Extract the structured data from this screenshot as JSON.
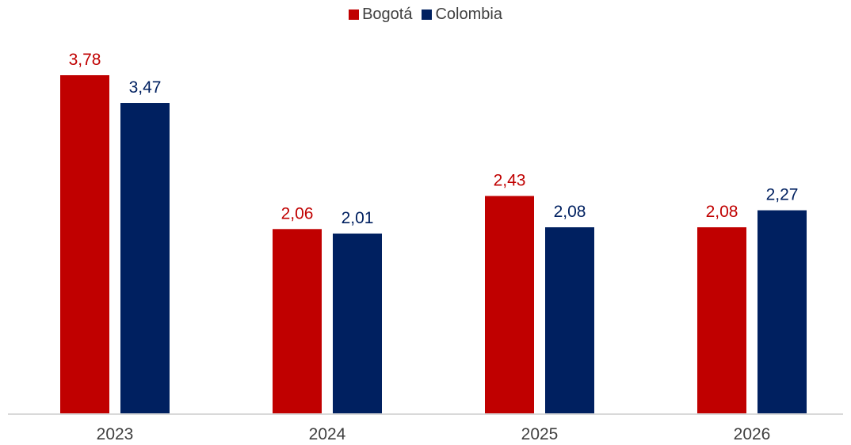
{
  "chart_data": {
    "type": "bar",
    "categories": [
      "2023",
      "2024",
      "2025",
      "2026"
    ],
    "series": [
      {
        "name": "Bogotá",
        "color": "#C00000",
        "values": [
          3.78,
          2.06,
          2.43,
          2.08
        ],
        "labels": [
          "3,78",
          "2,06",
          "2,43",
          "2,08"
        ]
      },
      {
        "name": "Colombia",
        "color": "#002060",
        "values": [
          3.47,
          2.01,
          2.08,
          2.27
        ],
        "labels": [
          "3,47",
          "2,01",
          "2,08",
          "2,27"
        ]
      }
    ],
    "ylim": [
      0,
      3.78
    ],
    "legend_position": "top-center",
    "grid": false
  }
}
